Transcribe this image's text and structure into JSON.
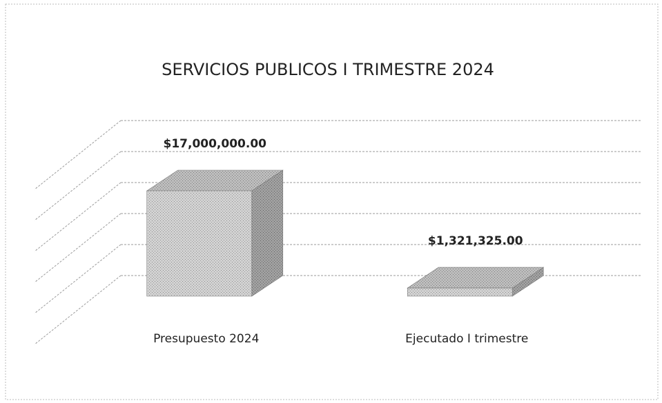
{
  "chart_data": {
    "type": "bar3d",
    "title": "SERVICIOS PUBLICOS I TRIMESTRE 2024",
    "categories": [
      "Presupuesto 2024",
      "Ejecutado I trimestre"
    ],
    "values": [
      17000000,
      1321325
    ],
    "value_labels": [
      "$17,000,000.00",
      "$1,321,325.00"
    ],
    "color": "#c8c8c8",
    "ylim": [
      0,
      25000000
    ],
    "yticks": [
      0,
      5000000,
      10000000,
      15000000,
      20000000,
      25000000
    ],
    "grid": true
  }
}
